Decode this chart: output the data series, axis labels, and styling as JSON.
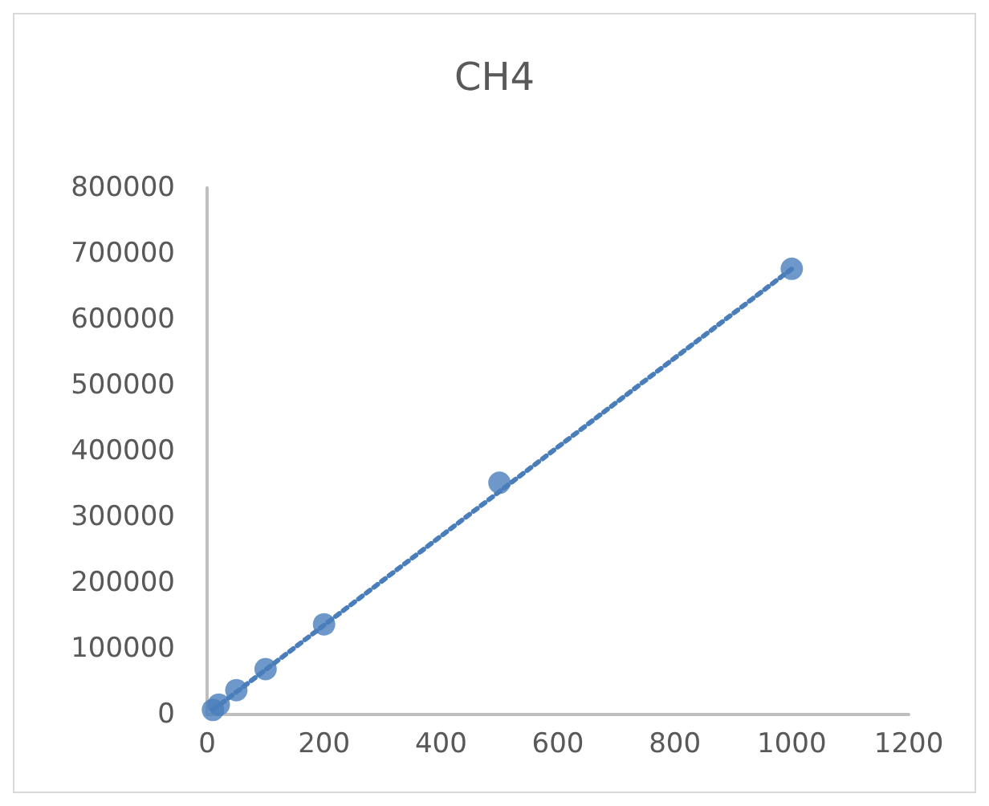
{
  "chart_data": {
    "type": "scatter",
    "title": "CH4",
    "marker": "circle",
    "grid": false,
    "xlim": [
      0,
      1200
    ],
    "xticks": [
      0,
      200,
      400,
      600,
      800,
      1000,
      1200
    ],
    "ylim": [
      0,
      800000
    ],
    "yticks": [
      0,
      100000,
      200000,
      300000,
      400000,
      500000,
      600000,
      700000,
      800000
    ],
    "series": [
      {
        "color": "#4a7ebb",
        "x": [
          10,
          20,
          50,
          100,
          200,
          500,
          1000
        ],
        "values": [
          7000,
          15000,
          37000,
          69000,
          137000,
          352000,
          677000
        ]
      },
      {
        "type": "line",
        "line_style": "dotted",
        "marker": "none",
        "color": "#4a7ebb",
        "x": [
          10,
          1000
        ],
        "values": [
          7000,
          677000
        ]
      }
    ]
  }
}
